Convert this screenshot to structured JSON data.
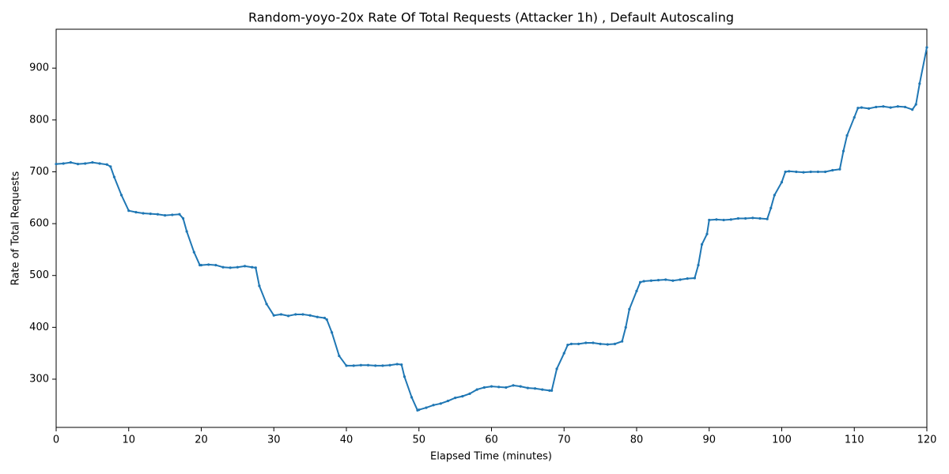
{
  "chart_data": {
    "type": "line",
    "title": "Random-yoyo-20x Rate Of Total Requests (Attacker 1h) , Default Autoscaling",
    "x_label": "Elapsed Time (minutes)",
    "y_label": "Rate of Total Requests",
    "xlim": [
      0,
      120
    ],
    "ylim": [
      207,
      975
    ],
    "xticks": [
      0,
      10,
      20,
      30,
      40,
      50,
      60,
      70,
      80,
      90,
      100,
      110,
      120
    ],
    "yticks": [
      300,
      400,
      500,
      600,
      700,
      800,
      900
    ],
    "grid": false,
    "x": [
      0,
      1,
      2,
      3,
      4,
      5,
      6,
      7,
      7.5,
      8,
      9,
      10,
      11,
      12,
      13,
      14,
      15,
      16,
      17,
      17.5,
      18,
      19,
      19.8,
      20,
      21,
      22,
      23,
      24,
      25,
      26,
      27,
      27.5,
      28,
      29,
      30,
      31,
      32,
      33,
      34,
      35,
      36,
      37,
      37.3,
      38,
      39,
      40,
      41,
      42,
      43,
      44,
      45,
      46,
      47,
      47.6,
      48,
      49,
      49.8,
      50,
      51,
      52,
      53,
      54,
      55,
      56,
      57,
      58,
      59,
      60,
      61,
      62,
      63,
      64,
      65,
      66,
      67,
      68,
      68.3,
      69,
      70,
      70.5,
      71,
      72,
      73,
      74,
      75,
      76,
      77,
      78,
      78.5,
      79,
      80,
      80.5,
      81,
      82,
      83,
      84,
      85,
      86,
      87,
      88,
      88.5,
      89,
      89.7,
      90,
      91,
      92,
      93,
      94,
      95,
      96,
      97,
      98,
      98.5,
      99,
      100,
      100.5,
      101,
      102,
      103,
      104,
      105,
      106,
      107,
      108,
      108.5,
      109,
      110,
      110.5,
      111,
      112,
      113,
      114,
      115,
      116,
      117,
      118,
      118.5,
      119,
      120
    ],
    "series": [
      {
        "name": "Rate of Total Requests",
        "color": "#1f77b4",
        "values": [
          715,
          716,
          718,
          715,
          716,
          718,
          716,
          714,
          710,
          690,
          655,
          625,
          622,
          620,
          619,
          618,
          616,
          617,
          618,
          610,
          585,
          545,
          520,
          520,
          521,
          520,
          516,
          515,
          516,
          518,
          516,
          515,
          480,
          445,
          423,
          425,
          422,
          425,
          425,
          423,
          420,
          418,
          415,
          390,
          345,
          326,
          326,
          327,
          327,
          326,
          326,
          327,
          329,
          328,
          305,
          265,
          240,
          241,
          245,
          250,
          253,
          258,
          264,
          267,
          272,
          280,
          284,
          286,
          285,
          284,
          288,
          286,
          283,
          282,
          280,
          278,
          278,
          320,
          350,
          366,
          368,
          368,
          370,
          370,
          368,
          367,
          368,
          373,
          400,
          435,
          470,
          487,
          489,
          490,
          491,
          492,
          490,
          492,
          494,
          495,
          520,
          560,
          580,
          607,
          608,
          607,
          608,
          610,
          610,
          611,
          610,
          609,
          630,
          655,
          680,
          700,
          701,
          700,
          699,
          700,
          700,
          700,
          703,
          705,
          740,
          770,
          805,
          823,
          824,
          822,
          825,
          826,
          824,
          826,
          825,
          820,
          830,
          870,
          940
        ]
      }
    ]
  }
}
